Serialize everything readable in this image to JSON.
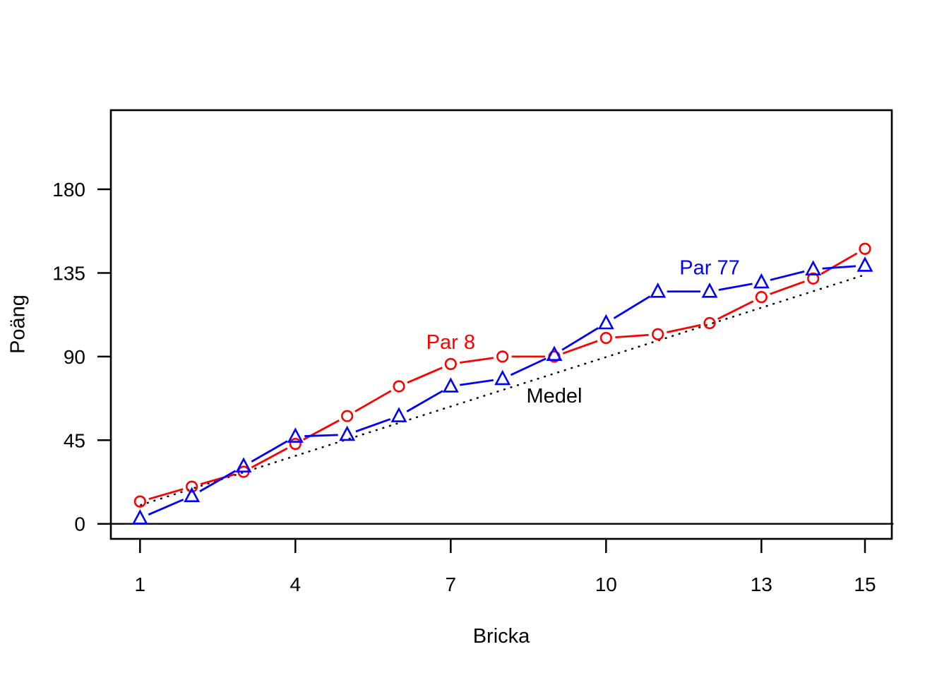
{
  "chart_data": {
    "type": "line",
    "title": "",
    "xlabel": "Bricka",
    "ylabel": "Poäng",
    "x_ticks": [
      1,
      4,
      7,
      10,
      13,
      15
    ],
    "y_ticks": [
      0,
      45,
      90,
      135,
      180
    ],
    "axis_ranges": {
      "x": [
        0.44,
        15.55
      ],
      "y": [
        -8,
        222
      ]
    },
    "grid": false,
    "legend_position": "inline-labels",
    "x": [
      1,
      2,
      3,
      4,
      5,
      6,
      7,
      8,
      9,
      10,
      11,
      12,
      13,
      14,
      15
    ],
    "series": [
      {
        "name": "Par 8",
        "color": "#ff0000",
        "marker": "circle",
        "line": "solid-between-points",
        "values": [
          12,
          20,
          28,
          43,
          58,
          74,
          86,
          90,
          90,
          100,
          102,
          108,
          122,
          132,
          148
        ],
        "label": {
          "text": "Par 8",
          "x": 7.0,
          "y": 98
        }
      },
      {
        "name": "Par 77",
        "color": "#0000ff",
        "marker": "triangle-up",
        "line": "solid-between-points",
        "values": [
          3,
          15,
          31,
          47,
          48,
          58,
          74,
          78,
          91,
          108,
          125,
          125,
          130,
          137,
          139
        ],
        "label": {
          "text": "Par 77",
          "x": 12.0,
          "y": 138
        }
      }
    ],
    "reference_lines": [
      {
        "name": "Medel",
        "color": "#000000",
        "style": "dotted",
        "x": [
          1,
          15
        ],
        "values": [
          10,
          134
        ],
        "label": {
          "text": "Medel",
          "x": 9.0,
          "y": 69
        }
      },
      {
        "name": "zero-line",
        "color": "#000000",
        "style": "solid",
        "x": [
          0.44,
          15.55
        ],
        "values": [
          0,
          0
        ]
      }
    ]
  },
  "colors": {
    "background": "#ffffff",
    "axis": "#000000"
  }
}
